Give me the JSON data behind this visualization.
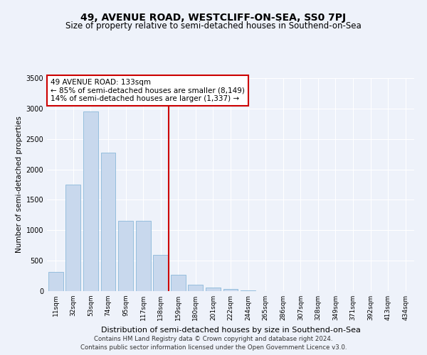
{
  "title": "49, AVENUE ROAD, WESTCLIFF-ON-SEA, SS0 7PJ",
  "subtitle": "Size of property relative to semi-detached houses in Southend-on-Sea",
  "xlabel": "Distribution of semi-detached houses by size in Southend-on-Sea",
  "ylabel": "Number of semi-detached properties",
  "footnote1": "Contains HM Land Registry data © Crown copyright and database right 2024.",
  "footnote2": "Contains public sector information licensed under the Open Government Licence v3.0.",
  "annotation_line1": "49 AVENUE ROAD: 133sqm",
  "annotation_line2": "← 85% of semi-detached houses are smaller (8,149)",
  "annotation_line3": "14% of semi-detached houses are larger (1,337) →",
  "bar_categories": [
    "11sqm",
    "32sqm",
    "53sqm",
    "74sqm",
    "95sqm",
    "117sqm",
    "138sqm",
    "159sqm",
    "180sqm",
    "201sqm",
    "222sqm",
    "244sqm",
    "265sqm",
    "286sqm",
    "307sqm",
    "328sqm",
    "349sqm",
    "371sqm",
    "392sqm",
    "413sqm",
    "434sqm"
  ],
  "bar_values": [
    310,
    1750,
    2950,
    2280,
    1150,
    1150,
    590,
    270,
    110,
    60,
    30,
    15,
    5,
    2,
    1,
    0,
    0,
    0,
    0,
    0,
    0
  ],
  "bar_color": "#c8d8ed",
  "bar_edge_color": "#7aafd4",
  "vline_x": 6.45,
  "vline_color": "#cc0000",
  "annotation_box_edgecolor": "#cc0000",
  "background_color": "#eef2fa",
  "ylim": [
    0,
    3500
  ],
  "yticks": [
    0,
    500,
    1000,
    1500,
    2000,
    2500,
    3000,
    3500
  ],
  "title_fontsize": 10,
  "subtitle_fontsize": 8.5,
  "xlabel_fontsize": 8,
  "ylabel_fontsize": 7.5,
  "tick_fontsize": 6.5,
  "annotation_fontsize": 7.5,
  "footnote_fontsize": 6.2
}
